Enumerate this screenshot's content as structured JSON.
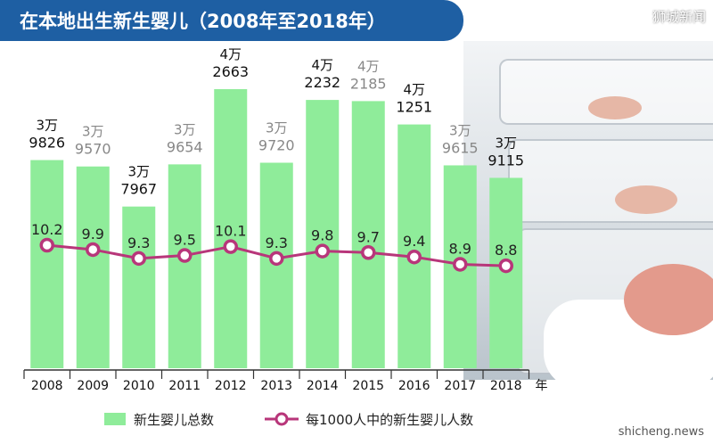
{
  "header": {
    "title": "在本地出生新生婴儿（2008年至2018年）",
    "source": "狮城新闻"
  },
  "watermark": "shicheng.news",
  "colors": {
    "bar": "#8fec9a",
    "line": "#b8367a",
    "title_bg": "#1e5fa3",
    "dark_label": "#111111",
    "light_label": "#888888"
  },
  "chart_data": {
    "type": "bar",
    "categories": [
      "2008",
      "2009",
      "2010",
      "2011",
      "2012",
      "2013",
      "2014",
      "2015",
      "2016",
      "2017",
      "2018"
    ],
    "x_unit": "年",
    "series": [
      {
        "name": "新生婴儿总数",
        "type": "bar",
        "values": [
          39826,
          39570,
          37967,
          39654,
          42663,
          39720,
          42232,
          42185,
          41251,
          39615,
          39115
        ],
        "labels_top": [
          "3万",
          "3万",
          "3万",
          "3万",
          "4万",
          "3万",
          "4万",
          "4万",
          "4万",
          "3万",
          "3万"
        ],
        "labels_bottom": [
          "9826",
          "9570",
          "7967",
          "9654",
          "2663",
          "9720",
          "2232",
          "2185",
          "1251",
          "9615",
          "9115"
        ],
        "label_tone": [
          "dark",
          "light",
          "dark",
          "light",
          "dark",
          "light",
          "dark",
          "light",
          "dark",
          "light",
          "dark"
        ]
      },
      {
        "name": "每1000人中的新生婴儿人数",
        "type": "line",
        "values": [
          10.2,
          9.9,
          9.3,
          9.5,
          10.1,
          9.3,
          9.8,
          9.7,
          9.4,
          8.9,
          8.8
        ],
        "labels": [
          "10.2",
          "9.9",
          "9.3",
          "9.5",
          "10.1",
          "9.3",
          "9.8",
          "9.7",
          "9.4",
          "8.9",
          "8.8"
        ]
      }
    ],
    "legend": [
      "新生婴儿总数",
      "每1000人中的新生婴儿人数"
    ],
    "legend_position": "bottom",
    "grid": false
  }
}
